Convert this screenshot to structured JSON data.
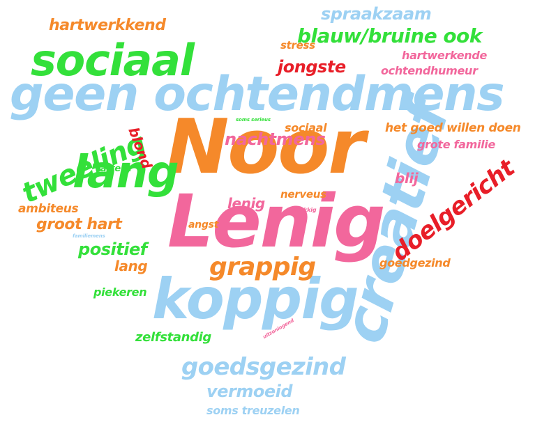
{
  "colors": {
    "blue": "#9dd1f3",
    "orange": "#f5892a",
    "green": "#33e03a",
    "pink": "#f2679c",
    "red": "#e81e28"
  },
  "words": {
    "geen_ochtendmens": "geen ochtendmens",
    "noor": "Noor",
    "lenig_big": "Lenig",
    "koppig": "koppig",
    "creatief": "creatief",
    "sociaal_big": "sociaal",
    "lang_big": "lang",
    "tweeling": "tweeling",
    "doelgericht": "doelgericht",
    "grappig": "grappig",
    "goedsgezind": "goedsgezind",
    "blauw_bruine_ook": "blauw/bruine ook",
    "spraakzaam": "spraakzaam",
    "hartwerkkend": "hartwerkkend",
    "jongste": "jongste",
    "stress": "stress",
    "hartwerkende": "hartwerkende",
    "ochtendhumeur": "ochtendhumeur",
    "nachtmens": "nachtmens",
    "sociaal_small": "sociaal",
    "soms_serieus": "soms serieus",
    "blond": "blond",
    "het_goed_willen_doen": "het goed willen doen",
    "grote_familie": "grote familie",
    "blij": "blij",
    "attent": "attent",
    "lenig_small": "lenig",
    "nerveus": "nerveus",
    "ambiteus": "ambiteus",
    "groot_hart": "groot hart",
    "angst": "angst",
    "gelukkig": "gelukkig",
    "positief": "positief",
    "familiemens": "familiemens",
    "lang_small": "lang",
    "goedgezind": "goedgezind",
    "piekeren": "piekeren",
    "zelfstandig": "zelfstandig",
    "uitzonlogend": "uitzonlogend",
    "vermoeid": "vermoeid",
    "soms_treuzelen": "soms treuzelen"
  }
}
